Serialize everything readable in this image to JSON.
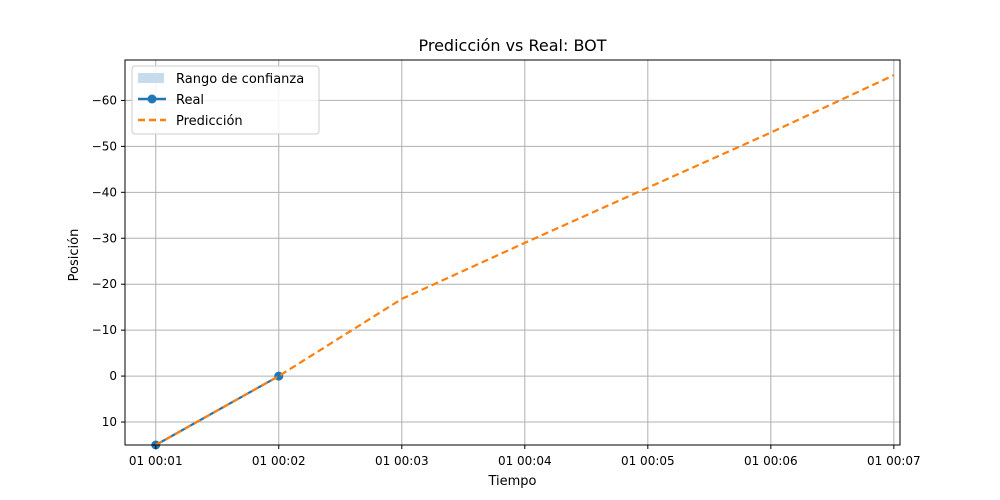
{
  "chart_data": {
    "type": "line",
    "title": "Predicción vs Real: BOT",
    "xlabel": "Tiempo",
    "ylabel": "Posición",
    "x_ticks": [
      "01 00:01",
      "01 00:02",
      "01 00:03",
      "01 00:04",
      "01 00:05",
      "01 00:06",
      "01 00:07"
    ],
    "y_ticks": [
      10,
      0,
      -10,
      -20,
      -30,
      -40,
      -50,
      -60
    ],
    "y_tick_labels": [
      "10",
      "0",
      "−10",
      "−20",
      "−30",
      "−40",
      "−50",
      "−60"
    ],
    "y_inverted": true,
    "xlim": [
      "01 00:00.75",
      "01 00:07.05"
    ],
    "ylim": [
      15,
      -68.8
    ],
    "grid": true,
    "legend_position": "top-left",
    "series": [
      {
        "name": "Real",
        "style": "solid-with-markers",
        "color": "#1f77b4",
        "x": [
          "01 00:01",
          "01 00:02"
        ],
        "y": [
          15,
          0
        ]
      },
      {
        "name": "Predicción",
        "style": "dashed",
        "color": "#ff7f0e",
        "x": [
          "01 00:01",
          "01 00:02",
          "01 00:03",
          "01 00:04",
          "01 00:05",
          "01 00:06",
          "01 00:07"
        ],
        "y": [
          15,
          0,
          -16.8,
          -29,
          -41,
          -53,
          -65.5
        ]
      }
    ],
    "confidence_band": {
      "name": "Rango de confianza",
      "color": "#c6dcec"
    }
  }
}
